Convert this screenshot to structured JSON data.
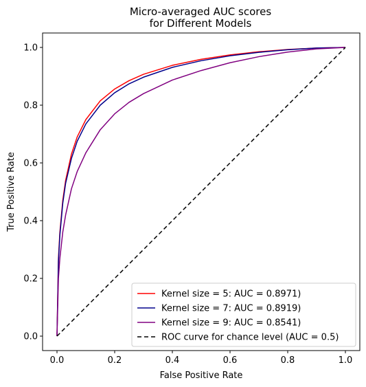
{
  "chart_data": {
    "type": "line",
    "title": [
      "Micro-averaged AUC scores",
      "for Different Models"
    ],
    "xlabel": "False Positive Rate",
    "ylabel": "True Positive Rate",
    "xlim": [
      -0.05,
      1.05
    ],
    "ylim": [
      -0.05,
      1.05
    ],
    "xticks": [
      0.0,
      0.2,
      0.4,
      0.6,
      0.8,
      1.0
    ],
    "yticks": [
      0.0,
      0.2,
      0.4,
      0.6,
      0.8,
      1.0
    ],
    "grid": false,
    "legend_position": "lower-right",
    "series": [
      {
        "name": "Kernel size = 5: AUC = 0.8971)",
        "color": "#ff0000",
        "dash": "solid",
        "x": [
          0.0,
          0.005,
          0.01,
          0.02,
          0.03,
          0.05,
          0.07,
          0.1,
          0.15,
          0.2,
          0.25,
          0.3,
          0.4,
          0.5,
          0.6,
          0.7,
          0.8,
          0.9,
          1.0
        ],
        "y": [
          0.0,
          0.27,
          0.36,
          0.47,
          0.54,
          0.63,
          0.69,
          0.75,
          0.815,
          0.856,
          0.885,
          0.907,
          0.938,
          0.959,
          0.974,
          0.985,
          0.993,
          0.998,
          1.0
        ]
      },
      {
        "name": "Kernel size = 7: AUC = 0.8919)",
        "color": "#00008b",
        "dash": "solid",
        "x": [
          0.0,
          0.005,
          0.01,
          0.02,
          0.03,
          0.05,
          0.07,
          0.1,
          0.15,
          0.2,
          0.25,
          0.3,
          0.4,
          0.5,
          0.6,
          0.7,
          0.8,
          0.9,
          1.0
        ],
        "y": [
          0.0,
          0.26,
          0.35,
          0.46,
          0.53,
          0.615,
          0.675,
          0.735,
          0.8,
          0.843,
          0.874,
          0.897,
          0.931,
          0.954,
          0.971,
          0.983,
          0.992,
          0.998,
          1.0
        ]
      },
      {
        "name": "Kernel size = 9: AUC = 0.8541)",
        "color": "#800080",
        "dash": "solid",
        "x": [
          0.0,
          0.005,
          0.01,
          0.02,
          0.03,
          0.05,
          0.07,
          0.1,
          0.15,
          0.2,
          0.25,
          0.3,
          0.4,
          0.5,
          0.6,
          0.7,
          0.8,
          0.9,
          1.0
        ],
        "y": [
          0.0,
          0.2,
          0.27,
          0.36,
          0.42,
          0.51,
          0.57,
          0.635,
          0.715,
          0.77,
          0.81,
          0.84,
          0.887,
          0.92,
          0.947,
          0.968,
          0.984,
          0.995,
          1.0
        ]
      },
      {
        "name": "ROC curve for chance level (AUC = 0.5)",
        "color": "#000000",
        "dash": "dashed",
        "x": [
          0.0,
          1.0
        ],
        "y": [
          0.0,
          1.0
        ]
      }
    ]
  }
}
